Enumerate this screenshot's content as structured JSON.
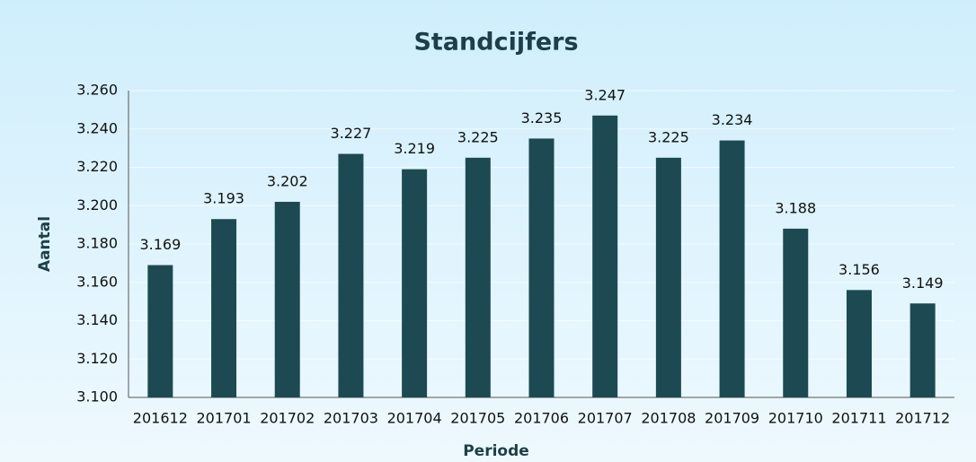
{
  "chart_data": {
    "type": "bar",
    "title": "Standcijfers",
    "x_label": "Periode",
    "y_label": "Aantal",
    "categories": [
      "201612",
      "201701",
      "201702",
      "201703",
      "201704",
      "201705",
      "201706",
      "201707",
      "201708",
      "201709",
      "201710",
      "201711",
      "201712"
    ],
    "values": [
      3169,
      3193,
      3202,
      3227,
      3219,
      3225,
      3235,
      3247,
      3225,
      3234,
      3188,
      3156,
      3149
    ],
    "value_labels": [
      "3.169",
      "3.193",
      "3.202",
      "3.227",
      "3.219",
      "3.225",
      "3.235",
      "3.247",
      "3.225",
      "3.234",
      "3.188",
      "3.156",
      "3.149"
    ],
    "color": "#1d4a52",
    "ylim": [
      3100,
      3260
    ],
    "yticks": [
      {
        "value": 3100,
        "label": "3.100"
      },
      {
        "value": 3120,
        "label": "3.120"
      },
      {
        "value": 3140,
        "label": "3.140"
      },
      {
        "value": 3160,
        "label": "3.160"
      },
      {
        "value": 3180,
        "label": "3.180"
      },
      {
        "value": 3200,
        "label": "3.200"
      },
      {
        "value": 3220,
        "label": "3.220"
      },
      {
        "value": 3240,
        "label": "3.240"
      },
      {
        "value": 3260,
        "label": "3.260"
      }
    ],
    "grid": true
  }
}
